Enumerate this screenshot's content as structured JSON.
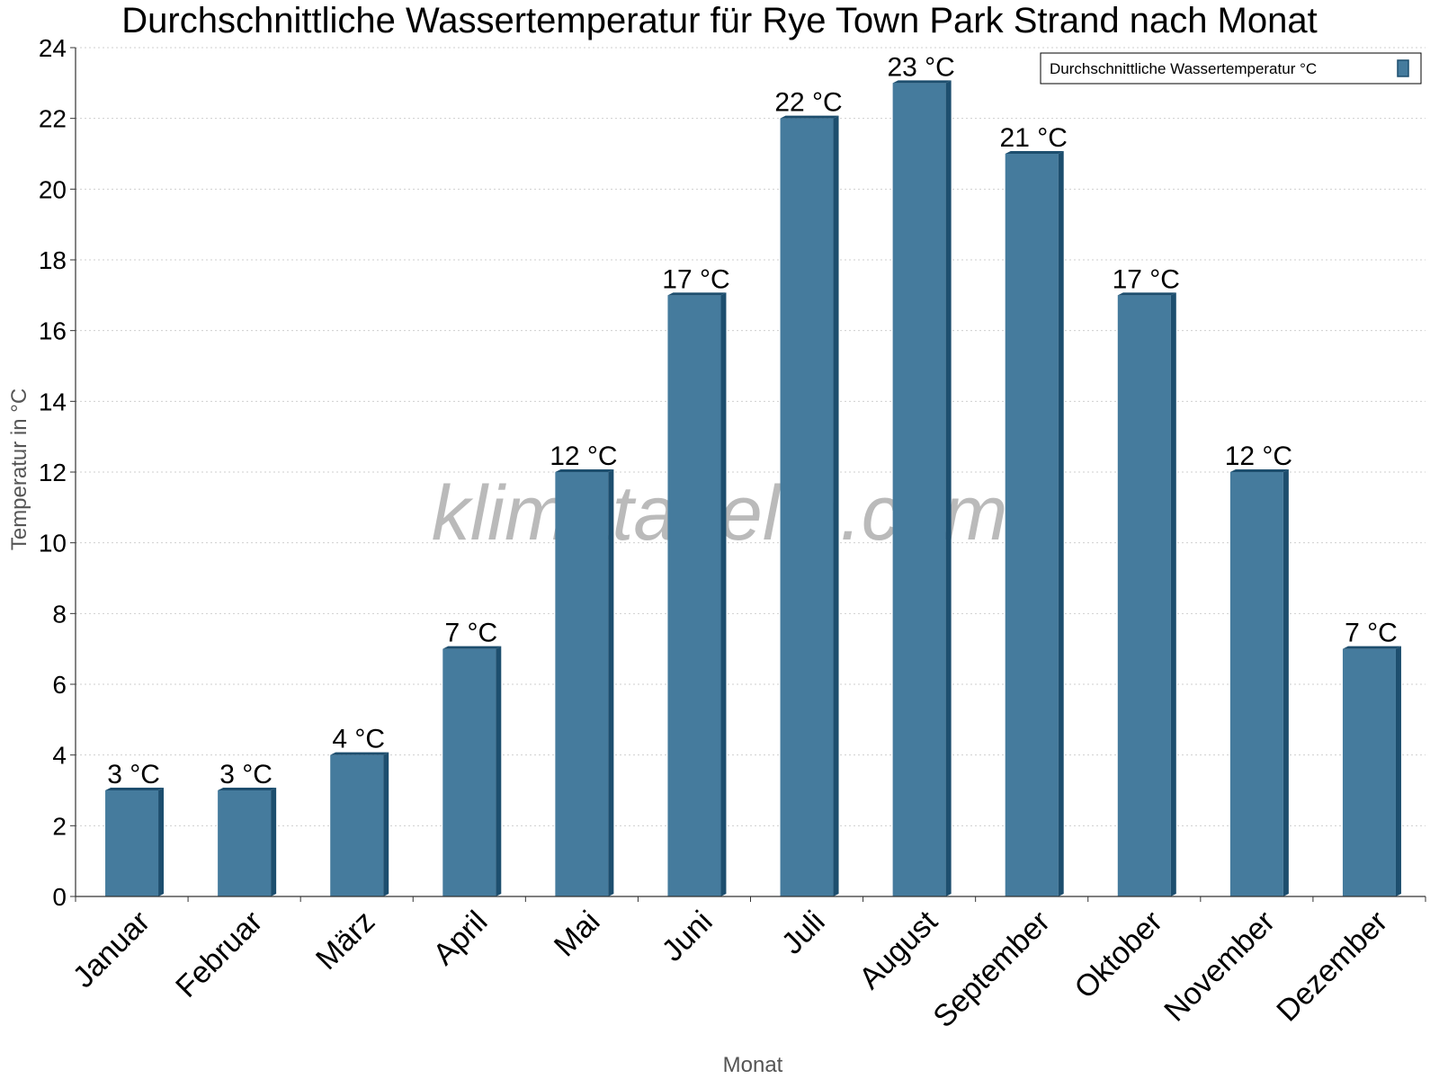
{
  "chart_data": {
    "type": "bar",
    "title": "Durchschnittliche Wassertemperatur für Rye Town Park Strand nach Monat",
    "xlabel": "Monat",
    "ylabel": "Temperatur in °C",
    "categories": [
      "Januar",
      "Februar",
      "März",
      "April",
      "Mai",
      "Juni",
      "Juli",
      "August",
      "September",
      "Oktober",
      "November",
      "Dezember"
    ],
    "series": [
      {
        "name": "Durchschnittliche Wassertemperatur °C",
        "values": [
          3,
          3,
          4,
          7,
          12,
          17,
          22,
          23,
          21,
          17,
          12,
          7
        ],
        "labels": [
          "3 °C",
          "3 °C",
          "4 °C",
          "7 °C",
          "12 °C",
          "17 °C",
          "22 °C",
          "23 °C",
          "21 °C",
          "17 °C",
          "12 °C",
          "7 °C"
        ]
      }
    ],
    "ylim": [
      0,
      24
    ],
    "yticks": [
      0,
      2,
      4,
      6,
      8,
      10,
      12,
      14,
      16,
      18,
      20,
      22,
      24
    ],
    "grid": true,
    "legend_position": "top-right",
    "colors": {
      "bar": "#457b9d",
      "bar_side": "#1d4e6e",
      "bar_top": "#1d4e6e"
    }
  },
  "watermark": "klimatabelle.com"
}
